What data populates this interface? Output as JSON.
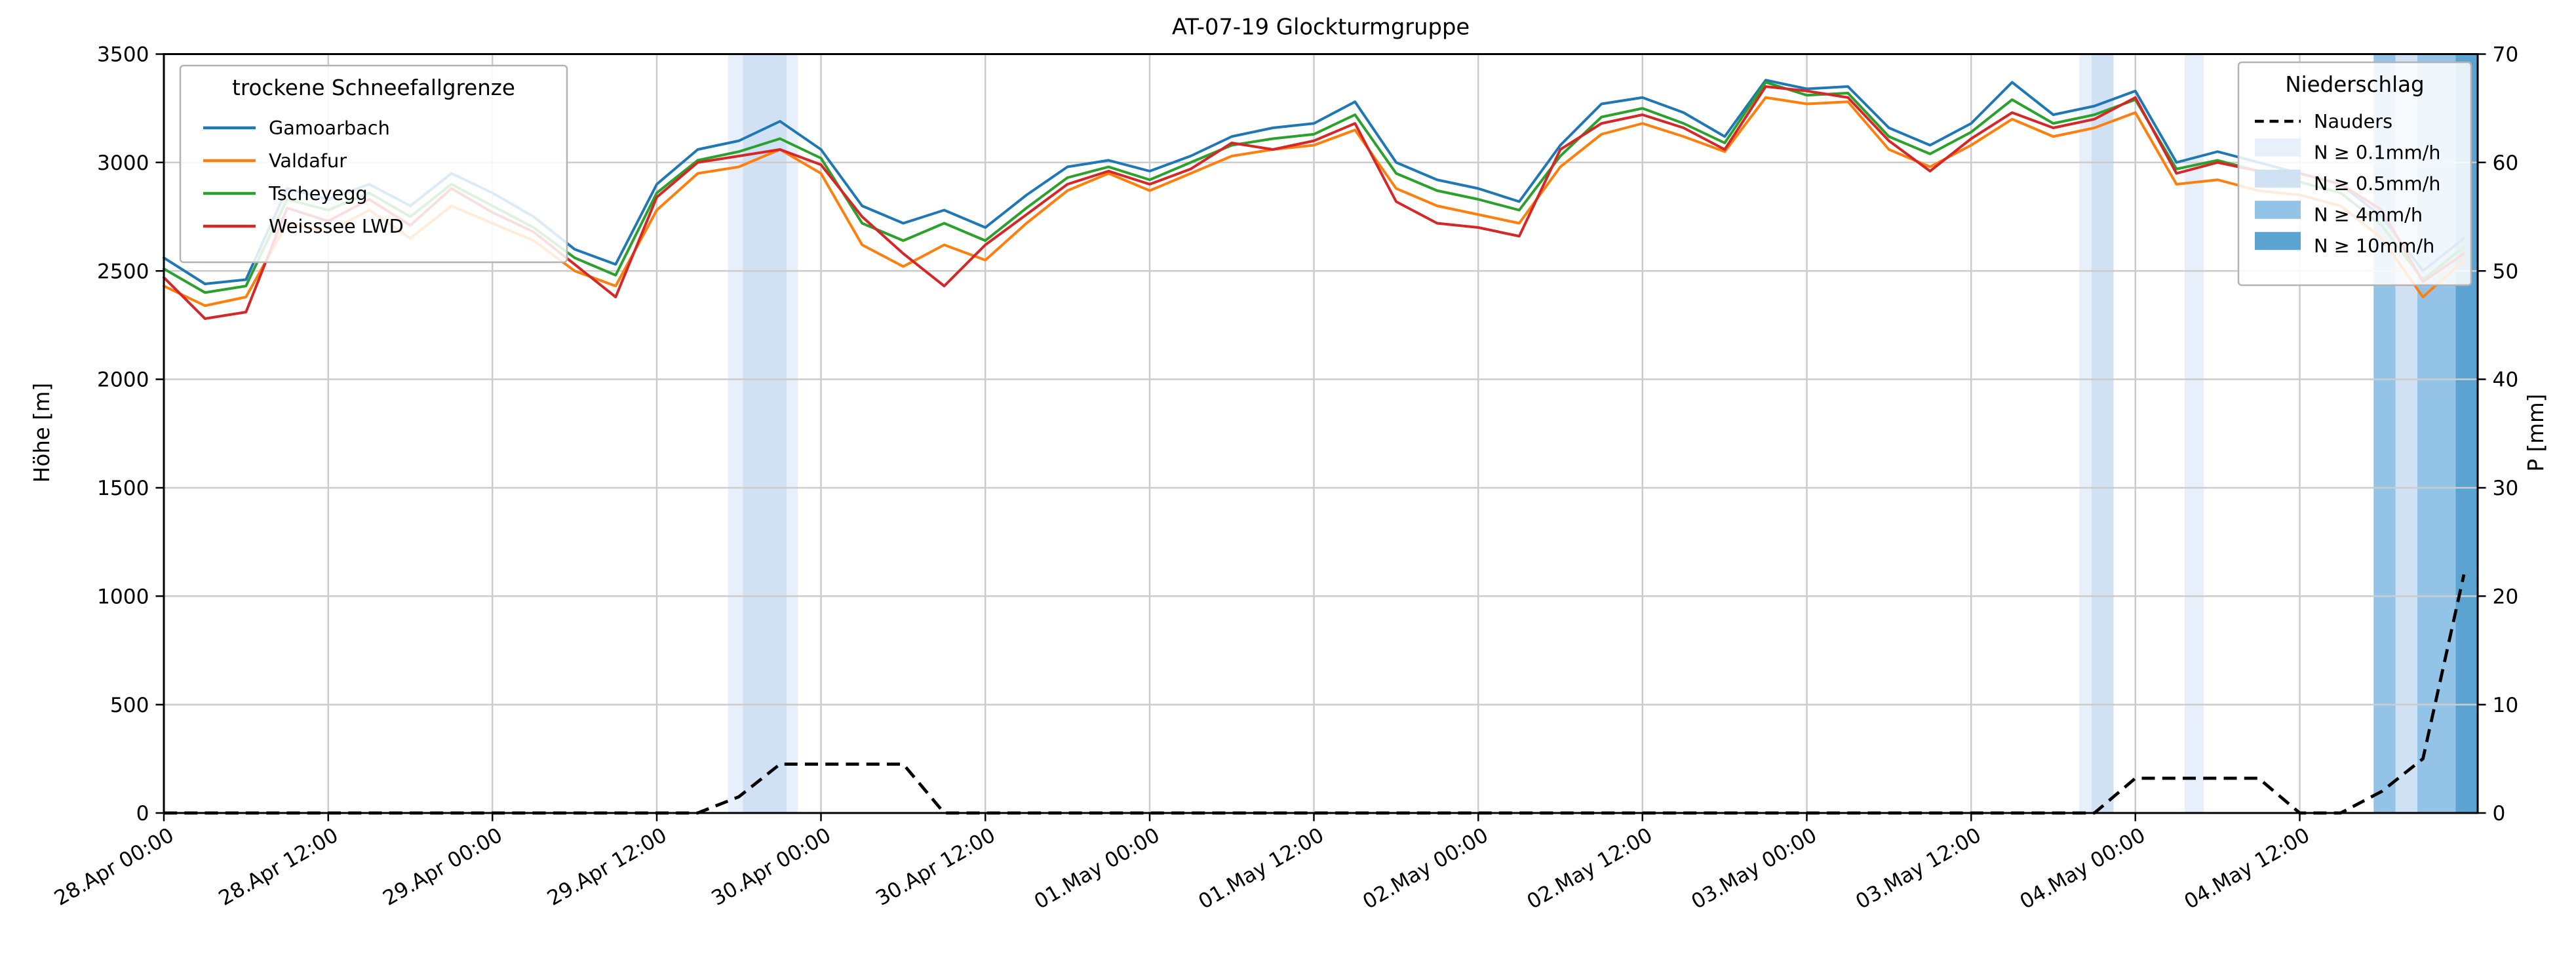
{
  "chart_data": {
    "type": "line",
    "title": "AT-07-19 Glockturmgruppe",
    "xlabel": "",
    "ylabel_left": "Höhe [m]",
    "ylabel_right": "P [mm]",
    "ylim_left": [
      0,
      3500
    ],
    "ylim_right": [
      0,
      70
    ],
    "yticks_left": [
      0,
      500,
      1000,
      1500,
      2000,
      2500,
      3000,
      3500
    ],
    "yticks_right": [
      0,
      10,
      20,
      30,
      40,
      50,
      60,
      70
    ],
    "grid": true,
    "xlim_hours": [
      0,
      169
    ],
    "xticks": [
      {
        "hour": 0,
        "label": "28.Apr 00:00"
      },
      {
        "hour": 12,
        "label": "28.Apr 12:00"
      },
      {
        "hour": 24,
        "label": "29.Apr 00:00"
      },
      {
        "hour": 36,
        "label": "29.Apr 12:00"
      },
      {
        "hour": 48,
        "label": "30.Apr 00:00"
      },
      {
        "hour": 60,
        "label": "30.Apr 12:00"
      },
      {
        "hour": 72,
        "label": "01.May 00:00"
      },
      {
        "hour": 84,
        "label": "01.May 12:00"
      },
      {
        "hour": 96,
        "label": "02.May 00:00"
      },
      {
        "hour": 108,
        "label": "02.May 12:00"
      },
      {
        "hour": 120,
        "label": "03.May 00:00"
      },
      {
        "hour": 132,
        "label": "03.May 12:00"
      },
      {
        "hour": 144,
        "label": "04.May 00:00"
      },
      {
        "hour": 156,
        "label": "04.May 12:00"
      }
    ],
    "x_hours": [
      0,
      3,
      6,
      9,
      12,
      15,
      18,
      21,
      24,
      27,
      30,
      33,
      36,
      39,
      42,
      45,
      48,
      51,
      54,
      57,
      60,
      63,
      66,
      69,
      72,
      75,
      78,
      81,
      84,
      87,
      90,
      93,
      96,
      99,
      102,
      105,
      108,
      111,
      114,
      117,
      120,
      123,
      126,
      129,
      132,
      135,
      138,
      141,
      144,
      147,
      150,
      153,
      156,
      159,
      162,
      165,
      168
    ],
    "legend_snowline_title": "trockene Schneefallgrenze",
    "series": [
      {
        "name": "Gamoarbach",
        "color": "#1f77b4",
        "values": [
          2560,
          2440,
          2460,
          2880,
          2830,
          2900,
          2800,
          2950,
          2860,
          2750,
          2600,
          2530,
          2900,
          3060,
          3100,
          3190,
          3060,
          2800,
          2720,
          2780,
          2700,
          2850,
          2980,
          3010,
          2960,
          3030,
          3120,
          3160,
          3180,
          3280,
          3000,
          2920,
          2880,
          2820,
          3080,
          3270,
          3300,
          3230,
          3120,
          3380,
          3340,
          3350,
          3160,
          3080,
          3180,
          3370,
          3220,
          3260,
          3330,
          3000,
          3050,
          3000,
          2950,
          2900,
          2750,
          2500,
          2650
        ]
      },
      {
        "name": "Valdafur",
        "color": "#ff7f0e",
        "values": [
          2430,
          2340,
          2380,
          2720,
          2680,
          2780,
          2650,
          2800,
          2720,
          2640,
          2500,
          2430,
          2780,
          2950,
          2980,
          3060,
          2950,
          2620,
          2520,
          2620,
          2550,
          2720,
          2870,
          2950,
          2870,
          2950,
          3030,
          3060,
          3080,
          3150,
          2880,
          2800,
          2760,
          2720,
          2980,
          3130,
          3180,
          3120,
          3050,
          3300,
          3270,
          3280,
          3060,
          2980,
          3080,
          3200,
          3120,
          3160,
          3230,
          2900,
          2920,
          2870,
          2850,
          2800,
          2650,
          2380,
          2550
        ]
      },
      {
        "name": "Tscheyegg",
        "color": "#2ca02c",
        "values": [
          2510,
          2400,
          2430,
          2830,
          2780,
          2860,
          2750,
          2900,
          2800,
          2700,
          2560,
          2480,
          2860,
          3010,
          3050,
          3110,
          3020,
          2720,
          2640,
          2720,
          2640,
          2790,
          2930,
          2980,
          2920,
          3000,
          3080,
          3110,
          3130,
          3220,
          2950,
          2870,
          2830,
          2780,
          3030,
          3210,
          3250,
          3180,
          3090,
          3370,
          3310,
          3320,
          3120,
          3040,
          3140,
          3290,
          3180,
          3220,
          3290,
          2970,
          3010,
          2960,
          2910,
          2860,
          2710,
          2460,
          2610
        ]
      },
      {
        "name": "Weisssee LWD",
        "color": "#d62728",
        "values": [
          2470,
          2280,
          2310,
          2790,
          2730,
          2830,
          2710,
          2880,
          2770,
          2680,
          2530,
          2380,
          2840,
          3000,
          3030,
          3060,
          2990,
          2750,
          2580,
          2430,
          2620,
          2760,
          2900,
          2960,
          2900,
          2970,
          3090,
          3060,
          3100,
          3180,
          2820,
          2720,
          2700,
          2660,
          3060,
          3180,
          3220,
          3160,
          3060,
          3350,
          3330,
          3300,
          3100,
          2960,
          3110,
          3230,
          3160,
          3200,
          3300,
          2950,
          3000,
          2960,
          2950,
          2900,
          2780,
          2450,
          2580
        ]
      }
    ],
    "precip_line": {
      "name": "Nauders",
      "color": "#000000",
      "style": "dashed",
      "axis": "right",
      "values": [
        0,
        0,
        0,
        0,
        0,
        0,
        0,
        0,
        0,
        0,
        0,
        0,
        0,
        0,
        1.5,
        4.5,
        4.5,
        4.5,
        4.5,
        0,
        0,
        0,
        0,
        0,
        0,
        0,
        0,
        0,
        0,
        0,
        0,
        0,
        0,
        0,
        0,
        0,
        0,
        0,
        0,
        0,
        0,
        0,
        0,
        0,
        0,
        0,
        0,
        0,
        3.2,
        3.2,
        3.2,
        3.2,
        0,
        0,
        2,
        5,
        22
      ]
    },
    "precip_bands": {
      "legend_title": "Niederschlag",
      "levels": [
        {
          "label": "N ≥ 0.1mm/h",
          "color": "#e7f0fa"
        },
        {
          "label": "N ≥ 0.5mm/h",
          "color": "#cfe1f2"
        },
        {
          "label": "N ≥ 4mm/h",
          "color": "#93c4e8"
        },
        {
          "label": "N ≥ 10mm/h",
          "color": "#5ba3d0"
        }
      ],
      "intervals": [
        {
          "start": 41.2,
          "end": 42.3,
          "level": 0
        },
        {
          "start": 42.3,
          "end": 45.5,
          "level": 1
        },
        {
          "start": 45.5,
          "end": 46.3,
          "level": 0
        },
        {
          "start": 139.9,
          "end": 140.8,
          "level": 0
        },
        {
          "start": 140.8,
          "end": 142.4,
          "level": 1
        },
        {
          "start": 147.6,
          "end": 149.0,
          "level": 0
        },
        {
          "start": 161.4,
          "end": 163.0,
          "level": 2
        },
        {
          "start": 163.0,
          "end": 164.6,
          "level": 1
        },
        {
          "start": 164.6,
          "end": 167.4,
          "level": 2
        },
        {
          "start": 167.4,
          "end": 169.0,
          "level": 3
        }
      ]
    }
  },
  "colors": {
    "grid": "#cccccc",
    "axis": "#000000",
    "background": "#ffffff"
  }
}
